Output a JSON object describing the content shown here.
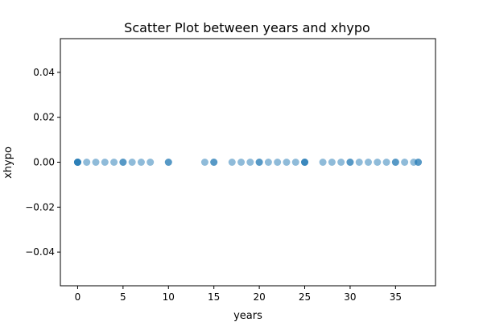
{
  "chart_data": {
    "type": "scatter",
    "title": "Scatter Plot between years and xhypo",
    "xlabel": "years",
    "ylabel": "xhypo",
    "xlim": [
      -1.9,
      39.4
    ],
    "ylim": [
      -0.055,
      0.055
    ],
    "xticks": [
      0,
      5,
      10,
      15,
      20,
      25,
      30,
      35
    ],
    "xtick_labels": [
      "0",
      "5",
      "10",
      "15",
      "20",
      "25",
      "30",
      "35"
    ],
    "yticks": [
      0.04,
      0.02,
      0.0,
      -0.02,
      -0.04
    ],
    "ytick_labels": [
      "0.04",
      "0.02",
      "0.00",
      "−0.02",
      "−0.04"
    ],
    "grid": false,
    "marker_color": "#1f77b4",
    "marker_alpha": 0.5,
    "series": [
      {
        "x": [
          0,
          0,
          0,
          0,
          1,
          2,
          3,
          4,
          5,
          5,
          6,
          7,
          8,
          10,
          10,
          14,
          15,
          15,
          17,
          18,
          19,
          20,
          20,
          21,
          22,
          23,
          24,
          25,
          25,
          25,
          27,
          28,
          29,
          30,
          30,
          31,
          32,
          33,
          34,
          35,
          35,
          36,
          37,
          37.5,
          37.5
        ],
        "y": [
          0,
          0,
          0,
          0,
          0,
          0,
          0,
          0,
          0,
          0,
          0,
          0,
          0,
          0,
          0,
          0,
          0,
          0,
          0,
          0,
          0,
          0,
          0,
          0,
          0,
          0,
          0,
          0,
          0,
          0,
          0,
          0,
          0,
          0,
          0,
          0,
          0,
          0,
          0,
          0,
          0,
          0,
          0,
          0,
          0
        ]
      }
    ]
  }
}
